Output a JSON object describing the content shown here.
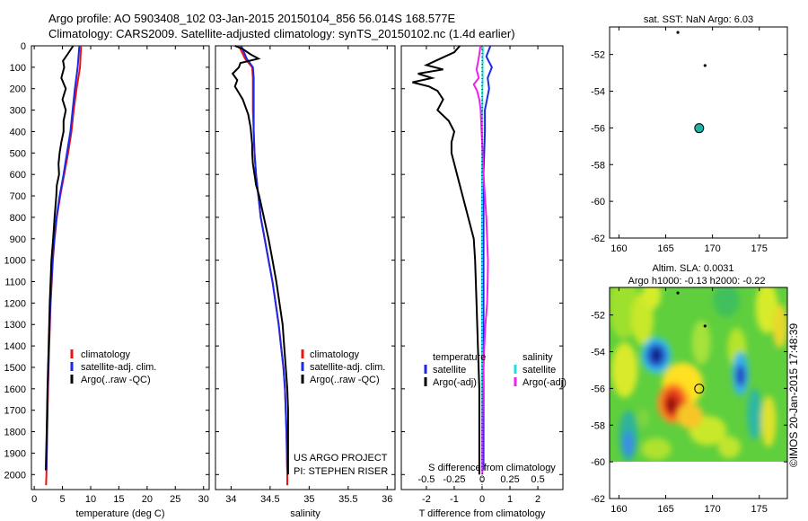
{
  "header": {
    "line1": "Argo profile: AO 5903408_102 03-Jan-2015 20150104_856 56.014S 168.577E",
    "line2": "Climatology: CARS2009. Satellite-adjusted climatology: synTS_20150102.nc (1.4d earlier)"
  },
  "watermark": "©IMOS 20-Jan-2015 17:48:39",
  "colors": {
    "climatology": "#ee1111",
    "satellite_adj": "#1a2ae6",
    "argo": "#000000",
    "salinity_satellite": "#22dddd",
    "salinity_argo": "#ee22ee",
    "float_marker": "#20b2aa"
  },
  "chart_data": [
    {
      "id": "temperature",
      "type": "line",
      "xlabel": "temperature (deg C)",
      "ylabel": "",
      "xlim": [
        -0.5,
        31
      ],
      "ylim": [
        2070,
        0
      ],
      "xticks": [
        0,
        5,
        10,
        15,
        20,
        25,
        30
      ],
      "yticks": [
        0,
        100,
        200,
        300,
        400,
        500,
        600,
        700,
        800,
        900,
        1000,
        1100,
        1200,
        1300,
        1400,
        1500,
        1600,
        1700,
        1800,
        1900,
        2000
      ],
      "legend": [
        "climatology",
        "satellite-adj. clim.",
        "Argo(..raw -QC)"
      ],
      "legend_position": "lower-center",
      "series": [
        {
          "name": "climatology",
          "color": "#ee1111",
          "depth": [
            0,
            100,
            200,
            300,
            400,
            500,
            600,
            700,
            800,
            900,
            1000,
            1200,
            1400,
            1600,
            1800,
            2000,
            2050
          ],
          "values": [
            8.3,
            8.1,
            7.5,
            7.0,
            6.6,
            6.0,
            5.3,
            4.6,
            4.0,
            3.6,
            3.3,
            2.9,
            2.65,
            2.45,
            2.3,
            2.15,
            2.1
          ]
        },
        {
          "name": "satellite-adj. clim.",
          "color": "#1a2ae6",
          "depth": [
            0,
            100,
            200,
            300,
            400,
            500,
            600,
            700,
            800,
            900,
            1000,
            1200,
            1400,
            1600,
            1800,
            1980
          ],
          "values": [
            8.0,
            7.7,
            7.2,
            6.8,
            6.4,
            5.8,
            5.2,
            4.5,
            3.95,
            3.55,
            3.25,
            2.85,
            2.6,
            2.4,
            2.25,
            2.15
          ]
        },
        {
          "name": "Argo(..raw -QC)",
          "color": "#000000",
          "depth": [
            0,
            40,
            70,
            100,
            150,
            200,
            250,
            300,
            350,
            400,
            450,
            500,
            550,
            600,
            650,
            700,
            800,
            900,
            1000,
            1200,
            1400,
            1600,
            1800,
            1980
          ],
          "values": [
            6.9,
            5.9,
            5.1,
            5.3,
            4.8,
            5.6,
            5.0,
            5.6,
            5.2,
            5.2,
            4.8,
            4.5,
            4.3,
            4.4,
            4.0,
            3.9,
            3.6,
            3.35,
            3.05,
            2.75,
            2.55,
            2.35,
            2.2,
            2.05
          ]
        }
      ]
    },
    {
      "id": "salinity",
      "type": "line",
      "xlabel": "salinity",
      "ylabel": "",
      "xlim": [
        33.8,
        36.1
      ],
      "ylim": [
        2070,
        0
      ],
      "xticks": [
        34,
        34.5,
        35,
        35.5,
        36
      ],
      "xticklabels": [
        "34",
        "34.5",
        "35",
        "35.5",
        "36"
      ],
      "legend": [
        "climatology",
        "satellite-adj. clim.",
        "Argo(..raw -QC)"
      ],
      "legend_position": "lower-right",
      "annotations": [
        "US ARGO PROJECT",
        "PI: STEPHEN RISER"
      ],
      "series": [
        {
          "name": "climatology",
          "color": "#ee1111",
          "depth": [
            0,
            60,
            100,
            150,
            200,
            300,
            400,
            500,
            600,
            700,
            800,
            900,
            1000,
            1100,
            1200,
            1300,
            1400,
            1500,
            1600,
            1800,
            2000,
            2050
          ],
          "values": [
            34.1,
            34.18,
            34.27,
            34.28,
            34.28,
            34.28,
            34.29,
            34.3,
            34.32,
            34.35,
            34.38,
            34.43,
            34.48,
            34.53,
            34.57,
            34.61,
            34.64,
            34.67,
            34.69,
            34.71,
            34.72,
            34.72
          ]
        },
        {
          "name": "satellite-adj. clim.",
          "color": "#1a2ae6",
          "depth": [
            0,
            60,
            100,
            150,
            200,
            300,
            400,
            500,
            600,
            700,
            800,
            900,
            1000,
            1100,
            1200,
            1300,
            1400,
            1500,
            1600,
            1800,
            1980
          ],
          "values": [
            34.13,
            34.2,
            34.28,
            34.29,
            34.29,
            34.29,
            34.29,
            34.3,
            34.32,
            34.35,
            34.38,
            34.43,
            34.48,
            34.53,
            34.57,
            34.61,
            34.64,
            34.67,
            34.69,
            34.71,
            34.72
          ]
        },
        {
          "name": "Argo(..raw -QC)",
          "color": "#000000",
          "depth": [
            0,
            15,
            40,
            60,
            80,
            100,
            130,
            160,
            190,
            220,
            250,
            280,
            320,
            380,
            420,
            460,
            500,
            550,
            600,
            650,
            700,
            800,
            900,
            1000,
            1100,
            1200,
            1300,
            1400,
            1500,
            1600,
            1700,
            1800,
            1900,
            2000
          ],
          "values": [
            34.05,
            34.15,
            34.25,
            34.35,
            34.12,
            34.1,
            34.02,
            34.08,
            34.05,
            34.1,
            34.15,
            34.18,
            34.22,
            34.25,
            34.26,
            34.27,
            34.27,
            34.28,
            34.3,
            34.32,
            34.36,
            34.42,
            34.48,
            34.53,
            34.58,
            34.62,
            34.66,
            34.68,
            34.7,
            34.72,
            34.73,
            34.73,
            34.73,
            34.73
          ]
        }
      ]
    },
    {
      "id": "difference",
      "type": "line",
      "xlabel": "T difference from climatology",
      "xlabel_top": "S difference from climatology",
      "ylabel": "",
      "xlim": [
        -2.9,
        2.9
      ],
      "ylim": [
        2070,
        0
      ],
      "xticks": [
        -2,
        -1,
        0,
        1,
        2
      ],
      "xticks_salinity": [
        -0.5,
        -0.25,
        0,
        0.25,
        0.5
      ],
      "xticklabels_salinity": [
        "-0.5",
        "-0.25",
        "0",
        "0.25",
        "0.5"
      ],
      "legend": [
        {
          "heading": "temperature",
          "items": [
            "satellite",
            "Argo(-adj)"
          ]
        },
        {
          "heading": "salinity",
          "items": [
            "satellite",
            "Argo(-adj)"
          ]
        }
      ],
      "legend_position": "lower-center",
      "series": [
        {
          "name": "temperature satellite",
          "color": "#1a2ae6",
          "depth": [
            0,
            50,
            100,
            150,
            200,
            300,
            400,
            600,
            800,
            1000,
            1200,
            1400,
            1600,
            1800,
            1980
          ],
          "values": [
            0.3,
            0.15,
            0.35,
            0.2,
            0.25,
            0.1,
            0.1,
            0.05,
            0.05,
            0.05,
            0.05,
            0.05,
            0.05,
            0.05,
            0.05
          ]
        },
        {
          "name": "temperature Argo(-adj)",
          "color": "#000000",
          "depth": [
            0,
            30,
            60,
            90,
            110,
            130,
            150,
            170,
            190,
            210,
            250,
            300,
            350,
            400,
            450,
            500,
            550,
            600,
            700,
            800,
            900,
            1000,
            1200,
            1400,
            1600,
            1800,
            2000
          ],
          "values": [
            -0.8,
            -1.0,
            -1.5,
            -2.0,
            -1.4,
            -2.3,
            -1.8,
            -2.5,
            -1.9,
            -1.6,
            -1.4,
            -1.6,
            -1.2,
            -1.0,
            -1.1,
            -1.1,
            -1.0,
            -0.9,
            -0.7,
            -0.5,
            -0.3,
            -0.25,
            -0.2,
            -0.15,
            -0.1,
            -0.1,
            -0.1
          ]
        },
        {
          "name": "salinity satellite",
          "color": "#22dddd",
          "depth": [
            0,
            50,
            100,
            150,
            200,
            300,
            400,
            600,
            800,
            1000,
            1200,
            1400,
            1600,
            1800,
            1980
          ],
          "values": [
            0.03,
            0.02,
            0.015,
            0.02,
            0.01,
            0.01,
            0.01,
            0.0,
            0.0,
            0.0,
            0.0,
            0.0,
            0.0,
            0.0,
            0.0
          ]
        },
        {
          "name": "salinity Argo(-adj)",
          "color": "#ee22ee",
          "depth": [
            0,
            40,
            80,
            110,
            150,
            180,
            210,
            250,
            300,
            400,
            500,
            600,
            700,
            800,
            900,
            1000,
            1100,
            1200,
            1300,
            1400,
            1500,
            1600,
            1700,
            1800,
            1900,
            2000
          ],
          "values": [
            -0.06,
            -0.1,
            -0.15,
            -0.2,
            -0.12,
            -0.3,
            -0.18,
            -0.1,
            -0.05,
            -0.02,
            0.02,
            0.05,
            0.1,
            0.15,
            0.18,
            0.21,
            0.2,
            0.18,
            0.12,
            0.08,
            0.05,
            0.03,
            0.02,
            0.01,
            0.01,
            0.01
          ]
        }
      ]
    },
    {
      "id": "sst-map",
      "type": "scatter",
      "title": "sat. SST: NaN Argo: 6.03",
      "xlim": [
        159,
        178
      ],
      "ylim": [
        -62,
        -50.5
      ],
      "xticks": [
        160,
        165,
        170,
        175
      ],
      "yticks": [
        -52,
        -54,
        -56,
        -58,
        -60,
        -62
      ],
      "points": [
        {
          "lon": 166.3,
          "lat": -50.8,
          "label": "small-island"
        },
        {
          "lon": 169.2,
          "lat": -52.6,
          "label": "small-island"
        },
        {
          "lon": 168.577,
          "lat": -56.014,
          "label": "argo-float"
        }
      ]
    },
    {
      "id": "altimetry-map",
      "type": "heatmap",
      "title_line1": "Altim. SLA: 0.0031",
      "title_line2": "Argo h1000: -0.13 h2000: -0.22",
      "xlim": [
        159,
        178
      ],
      "ylim": [
        -62,
        -50.5
      ],
      "data_ylim": [
        -60,
        -50.5
      ],
      "xticks": [
        160,
        165,
        170,
        175
      ],
      "yticks": [
        -52,
        -54,
        -56,
        -58,
        -60,
        -62
      ],
      "features": [
        {
          "lon": 164.0,
          "lat": -54.2,
          "anomaly": "strong negative"
        },
        {
          "lon": 165.8,
          "lat": -56.8,
          "anomaly": "strong positive"
        },
        {
          "lon": 173.0,
          "lat": -55.2,
          "anomaly": "negative"
        },
        {
          "lon": 161.0,
          "lat": -58.5,
          "anomaly": "negative"
        }
      ],
      "points": [
        {
          "lon": 166.3,
          "lat": -50.8,
          "label": "small-island"
        },
        {
          "lon": 169.2,
          "lat": -52.6,
          "label": "small-island"
        },
        {
          "lon": 168.577,
          "lat": -56.014,
          "label": "argo-float"
        }
      ]
    }
  ]
}
